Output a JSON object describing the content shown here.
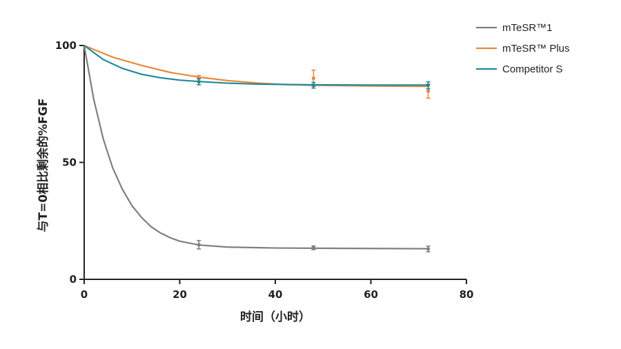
{
  "chart_data": {
    "type": "line",
    "xlabel": "时间（小时）",
    "ylabel": "与T=0相比剩余的%FGF",
    "xlim": [
      0,
      80
    ],
    "ylim": [
      0,
      100
    ],
    "x_ticks": [
      "0",
      "20",
      "40",
      "60",
      "80"
    ],
    "y_ticks": [
      "0",
      "50",
      "100"
    ],
    "grid": false,
    "legend_position": "top-right",
    "series": [
      {
        "name": "mTeSR™1",
        "color": "#7f7f7f",
        "curve": [
          [
            0,
            100
          ],
          [
            2,
            77
          ],
          [
            4,
            60
          ],
          [
            6,
            47.5
          ],
          [
            8,
            38.5
          ],
          [
            10,
            31.5
          ],
          [
            12,
            26.5
          ],
          [
            14,
            22.5
          ],
          [
            16,
            19.8
          ],
          [
            18,
            17.8
          ],
          [
            20,
            16.3
          ],
          [
            24,
            14.7
          ],
          [
            30,
            13.8
          ],
          [
            40,
            13.4
          ],
          [
            48,
            13.3
          ],
          [
            60,
            13.2
          ],
          [
            72,
            13.1
          ]
        ],
        "points": [
          {
            "x": 0,
            "y": 100,
            "err": 0
          },
          {
            "x": 24,
            "y": 14.8,
            "err": 1.8
          },
          {
            "x": 48,
            "y": 13.5,
            "err": 0.8
          },
          {
            "x": 72,
            "y": 13.0,
            "err": 1.2
          }
        ]
      },
      {
        "name": "mTeSR™ Plus",
        "color": "#e8893a",
        "curve": [
          [
            0,
            100
          ],
          [
            6,
            95
          ],
          [
            12,
            91.5
          ],
          [
            18,
            88.5
          ],
          [
            24,
            86.5
          ],
          [
            30,
            85
          ],
          [
            36,
            84
          ],
          [
            42,
            83.3
          ],
          [
            48,
            83
          ],
          [
            60,
            82.7
          ],
          [
            72,
            82.5
          ]
        ],
        "points": [
          {
            "x": 0,
            "y": 100,
            "err": 0
          },
          {
            "x": 24,
            "y": 86,
            "err": 1.2
          },
          {
            "x": 48,
            "y": 86,
            "err": 3.5
          },
          {
            "x": 72,
            "y": 80.5,
            "err": 3.0
          }
        ]
      },
      {
        "name": "Competitor S",
        "color": "#1c8a9a",
        "curve": [
          [
            0,
            100
          ],
          [
            4,
            94
          ],
          [
            8,
            90.2
          ],
          [
            12,
            87.7
          ],
          [
            16,
            86.2
          ],
          [
            20,
            85.2
          ],
          [
            24,
            84.6
          ],
          [
            30,
            83.9
          ],
          [
            36,
            83.5
          ],
          [
            48,
            83.2
          ],
          [
            60,
            83.1
          ],
          [
            72,
            83.1
          ]
        ],
        "points": [
          {
            "x": 0,
            "y": 100,
            "err": 0
          },
          {
            "x": 24,
            "y": 84.5,
            "err": 1.3
          },
          {
            "x": 48,
            "y": 83,
            "err": 1.2
          },
          {
            "x": 72,
            "y": 83,
            "err": 1.5
          }
        ]
      }
    ]
  }
}
